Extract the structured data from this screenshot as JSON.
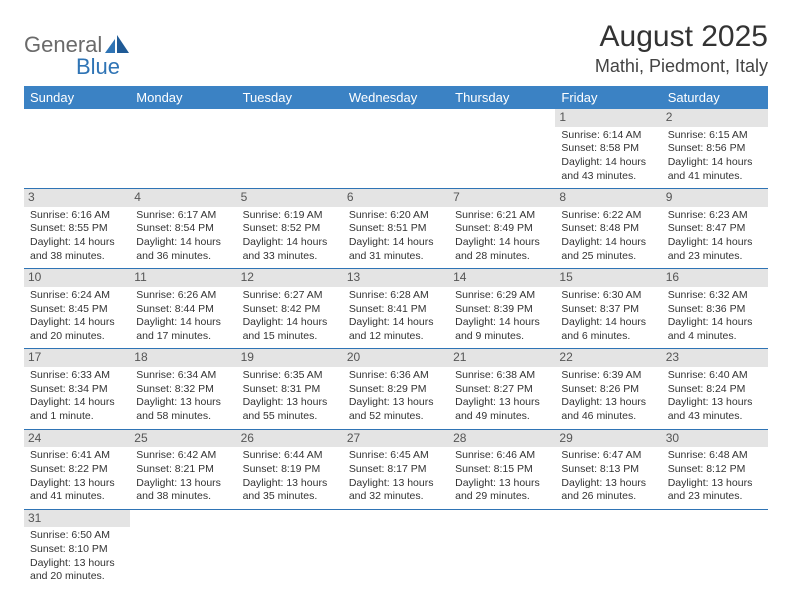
{
  "logo": {
    "text1": "General",
    "text2": "Blue"
  },
  "header": {
    "month_title": "August 2025",
    "location": "Mathi, Piedmont, Italy"
  },
  "colors": {
    "header_bg": "#3b82c4",
    "header_fg": "#ffffff",
    "daynum_bg": "#e4e4e4",
    "cell_border": "#2f74b5",
    "logo_gray": "#6a6a6a",
    "logo_blue": "#2f74b5"
  },
  "weekdays": [
    "Sunday",
    "Monday",
    "Tuesday",
    "Wednesday",
    "Thursday",
    "Friday",
    "Saturday"
  ],
  "weeks": [
    [
      {
        "n": "",
        "sr": "",
        "ss": "",
        "dl1": "",
        "dl2": ""
      },
      {
        "n": "",
        "sr": "",
        "ss": "",
        "dl1": "",
        "dl2": ""
      },
      {
        "n": "",
        "sr": "",
        "ss": "",
        "dl1": "",
        "dl2": ""
      },
      {
        "n": "",
        "sr": "",
        "ss": "",
        "dl1": "",
        "dl2": ""
      },
      {
        "n": "",
        "sr": "",
        "ss": "",
        "dl1": "",
        "dl2": ""
      },
      {
        "n": "1",
        "sr": "Sunrise: 6:14 AM",
        "ss": "Sunset: 8:58 PM",
        "dl1": "Daylight: 14 hours",
        "dl2": "and 43 minutes."
      },
      {
        "n": "2",
        "sr": "Sunrise: 6:15 AM",
        "ss": "Sunset: 8:56 PM",
        "dl1": "Daylight: 14 hours",
        "dl2": "and 41 minutes."
      }
    ],
    [
      {
        "n": "3",
        "sr": "Sunrise: 6:16 AM",
        "ss": "Sunset: 8:55 PM",
        "dl1": "Daylight: 14 hours",
        "dl2": "and 38 minutes."
      },
      {
        "n": "4",
        "sr": "Sunrise: 6:17 AM",
        "ss": "Sunset: 8:54 PM",
        "dl1": "Daylight: 14 hours",
        "dl2": "and 36 minutes."
      },
      {
        "n": "5",
        "sr": "Sunrise: 6:19 AM",
        "ss": "Sunset: 8:52 PM",
        "dl1": "Daylight: 14 hours",
        "dl2": "and 33 minutes."
      },
      {
        "n": "6",
        "sr": "Sunrise: 6:20 AM",
        "ss": "Sunset: 8:51 PM",
        "dl1": "Daylight: 14 hours",
        "dl2": "and 31 minutes."
      },
      {
        "n": "7",
        "sr": "Sunrise: 6:21 AM",
        "ss": "Sunset: 8:49 PM",
        "dl1": "Daylight: 14 hours",
        "dl2": "and 28 minutes."
      },
      {
        "n": "8",
        "sr": "Sunrise: 6:22 AM",
        "ss": "Sunset: 8:48 PM",
        "dl1": "Daylight: 14 hours",
        "dl2": "and 25 minutes."
      },
      {
        "n": "9",
        "sr": "Sunrise: 6:23 AM",
        "ss": "Sunset: 8:47 PM",
        "dl1": "Daylight: 14 hours",
        "dl2": "and 23 minutes."
      }
    ],
    [
      {
        "n": "10",
        "sr": "Sunrise: 6:24 AM",
        "ss": "Sunset: 8:45 PM",
        "dl1": "Daylight: 14 hours",
        "dl2": "and 20 minutes."
      },
      {
        "n": "11",
        "sr": "Sunrise: 6:26 AM",
        "ss": "Sunset: 8:44 PM",
        "dl1": "Daylight: 14 hours",
        "dl2": "and 17 minutes."
      },
      {
        "n": "12",
        "sr": "Sunrise: 6:27 AM",
        "ss": "Sunset: 8:42 PM",
        "dl1": "Daylight: 14 hours",
        "dl2": "and 15 minutes."
      },
      {
        "n": "13",
        "sr": "Sunrise: 6:28 AM",
        "ss": "Sunset: 8:41 PM",
        "dl1": "Daylight: 14 hours",
        "dl2": "and 12 minutes."
      },
      {
        "n": "14",
        "sr": "Sunrise: 6:29 AM",
        "ss": "Sunset: 8:39 PM",
        "dl1": "Daylight: 14 hours",
        "dl2": "and 9 minutes."
      },
      {
        "n": "15",
        "sr": "Sunrise: 6:30 AM",
        "ss": "Sunset: 8:37 PM",
        "dl1": "Daylight: 14 hours",
        "dl2": "and 6 minutes."
      },
      {
        "n": "16",
        "sr": "Sunrise: 6:32 AM",
        "ss": "Sunset: 8:36 PM",
        "dl1": "Daylight: 14 hours",
        "dl2": "and 4 minutes."
      }
    ],
    [
      {
        "n": "17",
        "sr": "Sunrise: 6:33 AM",
        "ss": "Sunset: 8:34 PM",
        "dl1": "Daylight: 14 hours",
        "dl2": "and 1 minute."
      },
      {
        "n": "18",
        "sr": "Sunrise: 6:34 AM",
        "ss": "Sunset: 8:32 PM",
        "dl1": "Daylight: 13 hours",
        "dl2": "and 58 minutes."
      },
      {
        "n": "19",
        "sr": "Sunrise: 6:35 AM",
        "ss": "Sunset: 8:31 PM",
        "dl1": "Daylight: 13 hours",
        "dl2": "and 55 minutes."
      },
      {
        "n": "20",
        "sr": "Sunrise: 6:36 AM",
        "ss": "Sunset: 8:29 PM",
        "dl1": "Daylight: 13 hours",
        "dl2": "and 52 minutes."
      },
      {
        "n": "21",
        "sr": "Sunrise: 6:38 AM",
        "ss": "Sunset: 8:27 PM",
        "dl1": "Daylight: 13 hours",
        "dl2": "and 49 minutes."
      },
      {
        "n": "22",
        "sr": "Sunrise: 6:39 AM",
        "ss": "Sunset: 8:26 PM",
        "dl1": "Daylight: 13 hours",
        "dl2": "and 46 minutes."
      },
      {
        "n": "23",
        "sr": "Sunrise: 6:40 AM",
        "ss": "Sunset: 8:24 PM",
        "dl1": "Daylight: 13 hours",
        "dl2": "and 43 minutes."
      }
    ],
    [
      {
        "n": "24",
        "sr": "Sunrise: 6:41 AM",
        "ss": "Sunset: 8:22 PM",
        "dl1": "Daylight: 13 hours",
        "dl2": "and 41 minutes."
      },
      {
        "n": "25",
        "sr": "Sunrise: 6:42 AM",
        "ss": "Sunset: 8:21 PM",
        "dl1": "Daylight: 13 hours",
        "dl2": "and 38 minutes."
      },
      {
        "n": "26",
        "sr": "Sunrise: 6:44 AM",
        "ss": "Sunset: 8:19 PM",
        "dl1": "Daylight: 13 hours",
        "dl2": "and 35 minutes."
      },
      {
        "n": "27",
        "sr": "Sunrise: 6:45 AM",
        "ss": "Sunset: 8:17 PM",
        "dl1": "Daylight: 13 hours",
        "dl2": "and 32 minutes."
      },
      {
        "n": "28",
        "sr": "Sunrise: 6:46 AM",
        "ss": "Sunset: 8:15 PM",
        "dl1": "Daylight: 13 hours",
        "dl2": "and 29 minutes."
      },
      {
        "n": "29",
        "sr": "Sunrise: 6:47 AM",
        "ss": "Sunset: 8:13 PM",
        "dl1": "Daylight: 13 hours",
        "dl2": "and 26 minutes."
      },
      {
        "n": "30",
        "sr": "Sunrise: 6:48 AM",
        "ss": "Sunset: 8:12 PM",
        "dl1": "Daylight: 13 hours",
        "dl2": "and 23 minutes."
      }
    ],
    [
      {
        "n": "31",
        "sr": "Sunrise: 6:50 AM",
        "ss": "Sunset: 8:10 PM",
        "dl1": "Daylight: 13 hours",
        "dl2": "and 20 minutes."
      },
      {
        "n": "",
        "sr": "",
        "ss": "",
        "dl1": "",
        "dl2": ""
      },
      {
        "n": "",
        "sr": "",
        "ss": "",
        "dl1": "",
        "dl2": ""
      },
      {
        "n": "",
        "sr": "",
        "ss": "",
        "dl1": "",
        "dl2": ""
      },
      {
        "n": "",
        "sr": "",
        "ss": "",
        "dl1": "",
        "dl2": ""
      },
      {
        "n": "",
        "sr": "",
        "ss": "",
        "dl1": "",
        "dl2": ""
      },
      {
        "n": "",
        "sr": "",
        "ss": "",
        "dl1": "",
        "dl2": ""
      }
    ]
  ]
}
